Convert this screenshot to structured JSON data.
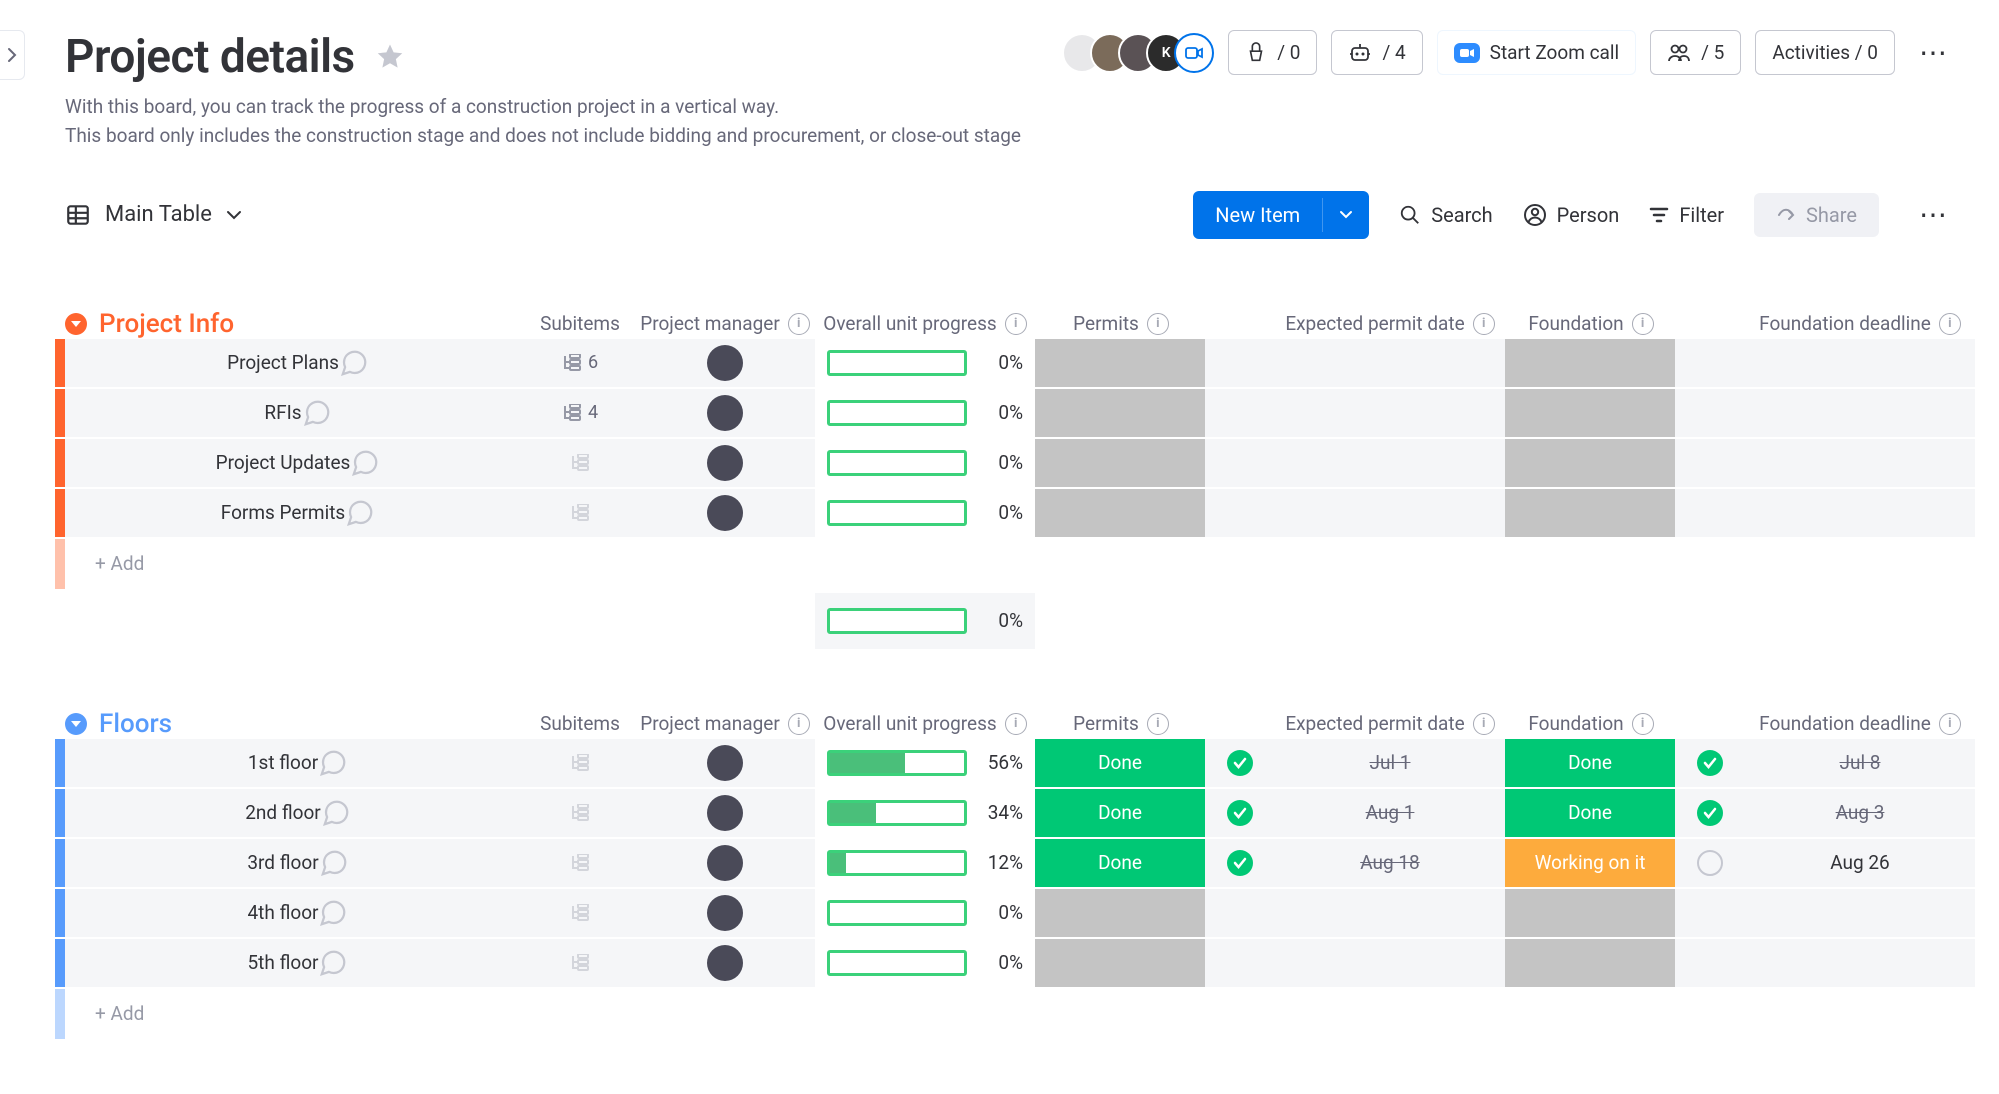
{
  "header": {
    "title": "Project details",
    "description_line1": "With this board, you can track the progress of a construction project in a vertical way.",
    "description_line2": "This board only includes the construction stage and does not include bidding and procurement, or close-out stage",
    "plug_count": "/ 0",
    "robot_count": "/ 4",
    "zoom_label": "Start Zoom call",
    "people_count": "/ 5",
    "activities_label": "Activities / 0"
  },
  "toolbar": {
    "view_label": "Main Table",
    "new_item_label": "New Item",
    "search_label": "Search",
    "person_label": "Person",
    "filter_label": "Filter",
    "share_label": "Share"
  },
  "columns": {
    "subitems": "Subitems",
    "pm": "Project manager",
    "progress": "Overall unit progress",
    "permits": "Permits",
    "exp_permit": "Expected permit date",
    "foundation": "Foundation",
    "found_deadline": "Foundation deadline"
  },
  "colors": {
    "done": "#00c875",
    "working": "#fdab3d",
    "empty": "#c4c4c4",
    "group1": "#ff642e",
    "group2": "#579bfc",
    "row_bg": "#f5f6f8",
    "progress_border": "#3bd17a",
    "progress_fill": "#57c282"
  },
  "statuses": {
    "done": "Done",
    "working": "Working on it"
  },
  "groups": [
    {
      "id": "g1",
      "title": "Project Info",
      "color": "#ff642e",
      "summary_progress": 0,
      "rows": [
        {
          "name": "Project Plans",
          "subitems": 6,
          "progress": 0,
          "permits": "",
          "permit_done": null,
          "exp": "",
          "foundation": "",
          "found_done": null,
          "deadline": ""
        },
        {
          "name": "RFIs",
          "subitems": 4,
          "progress": 0,
          "permits": "",
          "permit_done": null,
          "exp": "",
          "foundation": "",
          "found_done": null,
          "deadline": ""
        },
        {
          "name": "Project Updates",
          "subitems": null,
          "progress": 0,
          "permits": "",
          "permit_done": null,
          "exp": "",
          "foundation": "",
          "found_done": null,
          "deadline": ""
        },
        {
          "name": "Forms Permits",
          "subitems": null,
          "progress": 0,
          "permits": "",
          "permit_done": null,
          "exp": "",
          "foundation": "",
          "found_done": null,
          "deadline": ""
        }
      ]
    },
    {
      "id": "g2",
      "title": "Floors",
      "color": "#579bfc",
      "summary_progress": null,
      "rows": [
        {
          "name": "1st floor",
          "subitems": null,
          "progress": 56,
          "permits": "done",
          "permit_done": true,
          "exp": "Jul 1",
          "exp_strike": true,
          "foundation": "done",
          "found_done": true,
          "deadline": "Jul 8",
          "dl_strike": true
        },
        {
          "name": "2nd floor",
          "subitems": null,
          "progress": 34,
          "permits": "done",
          "permit_done": true,
          "exp": "Aug 1",
          "exp_strike": true,
          "foundation": "done",
          "found_done": true,
          "deadline": "Aug 3",
          "dl_strike": true
        },
        {
          "name": "3rd floor",
          "subitems": null,
          "progress": 12,
          "permits": "done",
          "permit_done": true,
          "exp": "Aug 18",
          "exp_strike": true,
          "foundation": "working",
          "found_done": false,
          "deadline": "Aug 26",
          "dl_strike": false
        },
        {
          "name": "4th floor",
          "subitems": null,
          "progress": 0,
          "permits": "",
          "permit_done": null,
          "exp": "",
          "foundation": "",
          "found_done": null,
          "deadline": ""
        },
        {
          "name": "5th floor",
          "subitems": null,
          "progress": 0,
          "permits": "",
          "permit_done": null,
          "exp": "",
          "foundation": "",
          "found_done": null,
          "deadline": ""
        }
      ]
    }
  ],
  "add_label": "+ Add"
}
